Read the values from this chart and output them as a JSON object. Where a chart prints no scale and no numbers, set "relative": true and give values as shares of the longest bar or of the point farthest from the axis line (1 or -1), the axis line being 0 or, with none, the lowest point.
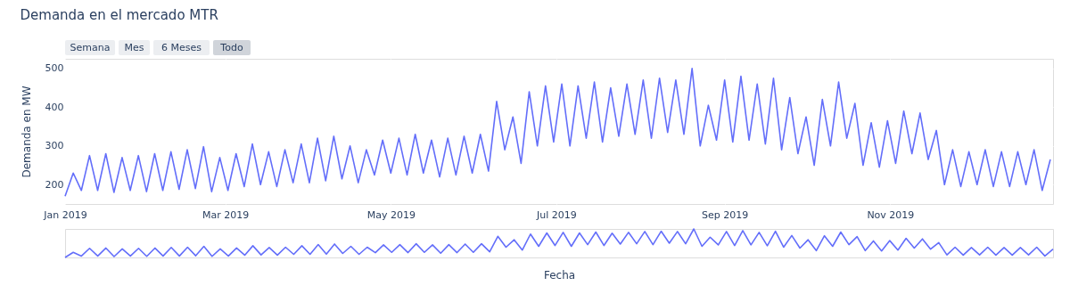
{
  "chart_data": [
    {
      "type": "line",
      "title": "Demanda en el mercado MTR",
      "ylabel": "Demanda en MW",
      "annotations": [
        "Semana",
        "Mes",
        "6 Meses",
        "Todo"
      ],
      "x": [
        "2019-01-01",
        "2019-01-04",
        "2019-01-07",
        "2019-01-10",
        "2019-01-13",
        "2019-01-16",
        "2019-01-19",
        "2019-01-22",
        "2019-01-25",
        "2019-01-28",
        "2019-01-31",
        "2019-02-03",
        "2019-02-06",
        "2019-02-09",
        "2019-02-12",
        "2019-02-15",
        "2019-02-18",
        "2019-02-21",
        "2019-02-24",
        "2019-02-27",
        "2019-03-02",
        "2019-03-05",
        "2019-03-08",
        "2019-03-11",
        "2019-03-14",
        "2019-03-17",
        "2019-03-20",
        "2019-03-23",
        "2019-03-26",
        "2019-03-29",
        "2019-04-01",
        "2019-04-04",
        "2019-04-07",
        "2019-04-10",
        "2019-04-13",
        "2019-04-16",
        "2019-04-19",
        "2019-04-22",
        "2019-04-25",
        "2019-04-28",
        "2019-05-01",
        "2019-05-04",
        "2019-05-07",
        "2019-05-10",
        "2019-05-13",
        "2019-05-16",
        "2019-05-19",
        "2019-05-22",
        "2019-05-25",
        "2019-05-28",
        "2019-05-31",
        "2019-06-03",
        "2019-06-06",
        "2019-06-09",
        "2019-06-12",
        "2019-06-15",
        "2019-06-18",
        "2019-06-21",
        "2019-06-24",
        "2019-06-27",
        "2019-06-30",
        "2019-07-03",
        "2019-07-06",
        "2019-07-09",
        "2019-07-12",
        "2019-07-15",
        "2019-07-18",
        "2019-07-21",
        "2019-07-24",
        "2019-07-27",
        "2019-07-30",
        "2019-08-02",
        "2019-08-05",
        "2019-08-08",
        "2019-08-11",
        "2019-08-14",
        "2019-08-17",
        "2019-08-20",
        "2019-08-23",
        "2019-08-26",
        "2019-08-29",
        "2019-09-01",
        "2019-09-04",
        "2019-09-07",
        "2019-09-10",
        "2019-09-13",
        "2019-09-16",
        "2019-09-19",
        "2019-09-22",
        "2019-09-25",
        "2019-09-28",
        "2019-10-01",
        "2019-10-04",
        "2019-10-07",
        "2019-10-10",
        "2019-10-13",
        "2019-10-16",
        "2019-10-19",
        "2019-10-22",
        "2019-10-25",
        "2019-10-28",
        "2019-10-31",
        "2019-11-03",
        "2019-11-06",
        "2019-11-09",
        "2019-11-12",
        "2019-11-15",
        "2019-11-18",
        "2019-11-21",
        "2019-11-24",
        "2019-11-27",
        "2019-11-30",
        "2019-12-03",
        "2019-12-06",
        "2019-12-09",
        "2019-12-12",
        "2019-12-15",
        "2019-12-18",
        "2019-12-21",
        "2019-12-24",
        "2019-12-27",
        "2019-12-30"
      ],
      "series": [
        {
          "color": "#636efa",
          "values": [
            170,
            230,
            185,
            275,
            185,
            280,
            180,
            270,
            185,
            275,
            182,
            280,
            185,
            285,
            188,
            290,
            190,
            298,
            182,
            270,
            185,
            280,
            195,
            305,
            200,
            285,
            195,
            290,
            205,
            305,
            205,
            320,
            210,
            325,
            215,
            300,
            205,
            290,
            225,
            315,
            230,
            320,
            225,
            330,
            230,
            315,
            220,
            320,
            225,
            325,
            230,
            330,
            235,
            415,
            290,
            375,
            255,
            440,
            300,
            455,
            310,
            460,
            300,
            455,
            320,
            465,
            310,
            450,
            325,
            460,
            330,
            470,
            320,
            475,
            335,
            470,
            330,
            500,
            300,
            405,
            315,
            470,
            310,
            480,
            315,
            460,
            305,
            475,
            290,
            425,
            280,
            375,
            250,
            420,
            300,
            465,
            320,
            410,
            250,
            360,
            245,
            365,
            255,
            390,
            280,
            385,
            265,
            340,
            200,
            290,
            195,
            285,
            200,
            290,
            195,
            285,
            195,
            285,
            200,
            290,
            185,
            265
          ]
        }
      ],
      "xlim": [
        "2019-01-01",
        "2019-12-31"
      ],
      "ylim": [
        150,
        525
      ],
      "xticks": [
        {
          "value": "2019-01-01",
          "label": "Jan 2019"
        },
        {
          "value": "2019-03-01",
          "label": "Mar 2019"
        },
        {
          "value": "2019-05-01",
          "label": "May 2019"
        },
        {
          "value": "2019-07-01",
          "label": "Jul 2019"
        },
        {
          "value": "2019-09-01",
          "label": "Sep 2019"
        },
        {
          "value": "2019-11-01",
          "label": "Nov 2019"
        }
      ],
      "yticks": [
        200,
        300,
        400,
        500
      ],
      "grid": true,
      "legend": false,
      "line_style": "solid",
      "marker": "none"
    },
    {
      "type": "line",
      "xlabel": "Fecha",
      "relative": true,
      "tick_labels": false,
      "legend": false,
      "line_style": "solid",
      "marker": "none",
      "categories": [
        null,
        null,
        null,
        null,
        null,
        null,
        null,
        null,
        null,
        null,
        null,
        null,
        null,
        null,
        null,
        null,
        null,
        null,
        null,
        null,
        null,
        null,
        null,
        null,
        null,
        null,
        null,
        null,
        null,
        null,
        null,
        null,
        null,
        null,
        null,
        null,
        null,
        null,
        null,
        null,
        null,
        null,
        null,
        null,
        null,
        null,
        null,
        null,
        null,
        null,
        null,
        null,
        null,
        null,
        null,
        null,
        null,
        null,
        null,
        null,
        null,
        null,
        null,
        null,
        null,
        null,
        null,
        null,
        null,
        null,
        null,
        null,
        null,
        null,
        null,
        null,
        null,
        null,
        null,
        null,
        null,
        null,
        null,
        null,
        null,
        null,
        null,
        null,
        null,
        null,
        null,
        null,
        null,
        null,
        null,
        null,
        null,
        null,
        null,
        null,
        null,
        null,
        null,
        null,
        null,
        null,
        null,
        null,
        null,
        null,
        null,
        null,
        null,
        null,
        null,
        null,
        null,
        null,
        null,
        null,
        null,
        null
      ],
      "series": [
        {
          "color": "#636efa",
          "values": [
            0,
            0.18,
            0.05,
            0.32,
            0.05,
            0.33,
            0.03,
            0.3,
            0.05,
            0.32,
            0.04,
            0.33,
            0.05,
            0.35,
            0.05,
            0.36,
            0.06,
            0.39,
            0.04,
            0.3,
            0.05,
            0.33,
            0.08,
            0.41,
            0.09,
            0.35,
            0.08,
            0.36,
            0.11,
            0.41,
            0.11,
            0.45,
            0.12,
            0.47,
            0.14,
            0.39,
            0.11,
            0.36,
            0.17,
            0.44,
            0.18,
            0.45,
            0.17,
            0.48,
            0.18,
            0.44,
            0.15,
            0.45,
            0.17,
            0.47,
            0.18,
            0.48,
            0.2,
            0.74,
            0.36,
            0.62,
            0.26,
            0.82,
            0.39,
            0.86,
            0.42,
            0.88,
            0.39,
            0.86,
            0.45,
            0.89,
            0.42,
            0.85,
            0.47,
            0.88,
            0.48,
            0.91,
            0.45,
            0.92,
            0.5,
            0.91,
            0.48,
            1,
            0.39,
            0.71,
            0.44,
            0.91,
            0.42,
            0.94,
            0.44,
            0.88,
            0.41,
            0.92,
            0.36,
            0.77,
            0.33,
            0.62,
            0.24,
            0.76,
            0.39,
            0.89,
            0.45,
            0.73,
            0.24,
            0.58,
            0.23,
            0.59,
            0.26,
            0.67,
            0.33,
            0.65,
            0.29,
            0.52,
            0.09,
            0.36,
            0.08,
            0.35,
            0.09,
            0.36,
            0.08,
            0.35,
            0.08,
            0.35,
            0.09,
            0.36,
            0.05,
            0.29
          ]
        }
      ]
    }
  ]
}
